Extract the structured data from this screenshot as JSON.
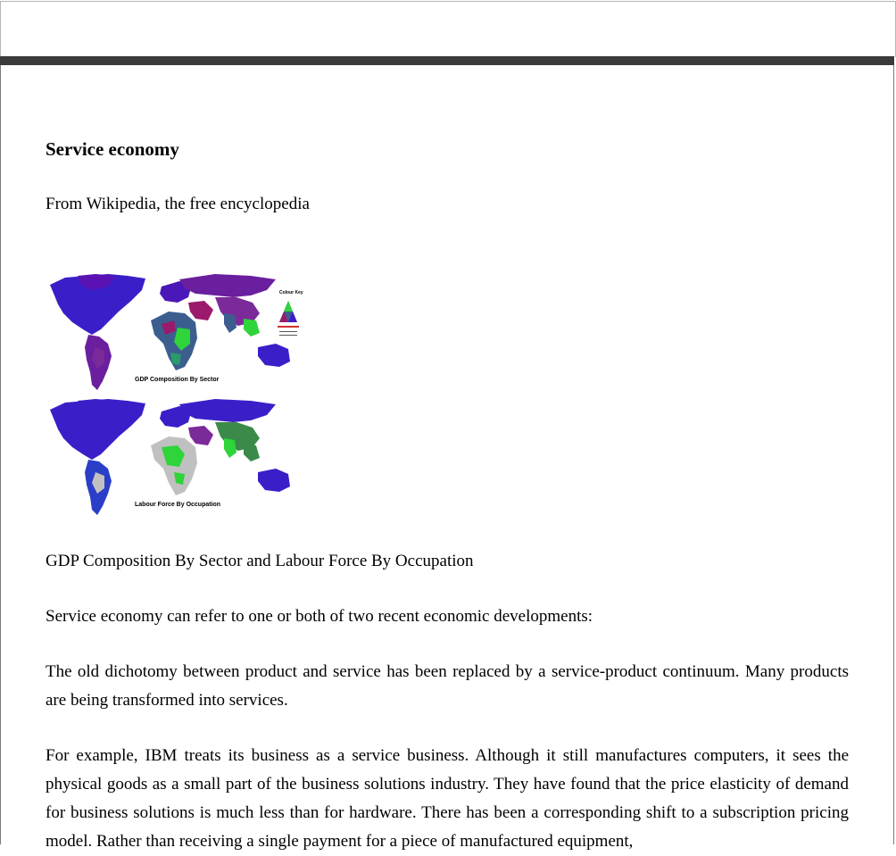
{
  "article": {
    "title": "Service economy",
    "tagline": "From Wikipedia, the free encyclopedia",
    "figure": {
      "map_top_label": "GDP Composition By Sector",
      "map_bottom_label": "Labour Force By Occupation",
      "key_label": "Colour Key",
      "colors": {
        "services": "#5a12b4",
        "industry": "#9b1a6b",
        "agriculture": "#2fd33a",
        "mixed": "#3b5e8f",
        "nodata": "#c0c0c0",
        "highservice": "#3a1fc9"
      }
    },
    "caption": "GDP Composition By Sector and Labour Force By Occupation",
    "paragraphs": [
      "Service economy can refer to one or both of two recent economic developments:",
      "The old dichotomy between product and service has been replaced by a service-product continuum. Many products are being transformed into services.",
      "For example, IBM treats its business as a service business. Although it still manufactures computers, it sees the physical goods as a small part of the business solutions industry. They have found that the price elasticity of demand for business solutions is much less than for hardware. There has been a corresponding shift to a subscription pricing model. Rather than receiving a single payment for a piece of manufactured equipment,"
    ]
  }
}
